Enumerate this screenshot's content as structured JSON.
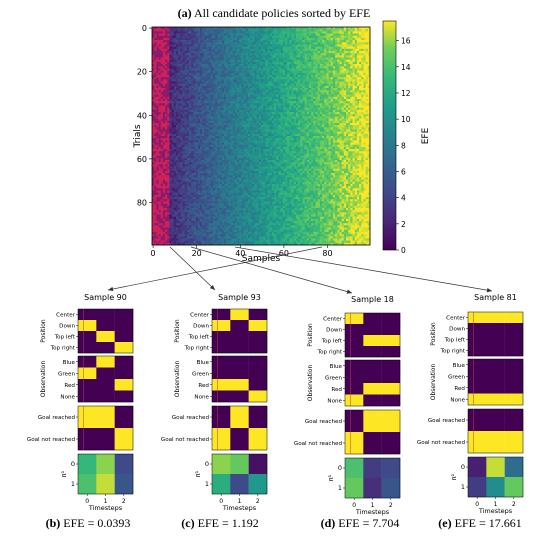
{
  "chart_data": {
    "main": {
      "type": "heatmap",
      "panel_letter": "(a)",
      "title": "All candidate policies sorted by EFE",
      "xlabel": "Samples",
      "ylabel": "Trials",
      "x_ticks": [
        "0",
        "20",
        "40",
        "60",
        "80"
      ],
      "y_ticks": [
        "0",
        "20",
        "40",
        "60",
        "80"
      ],
      "n_rows": 100,
      "n_cols": 100,
      "colorbar": {
        "label": "EFE",
        "ticks": [
          "0",
          "2",
          "4",
          "6",
          "8",
          "10",
          "12",
          "14",
          "16"
        ],
        "range": [
          0,
          17.5
        ]
      },
      "description_values": {
        "low_end_highlight_cols": 8,
        "max_value": 17.5
      }
    },
    "samples": [
      {
        "title": "Sample 90",
        "caption_letter": "(b)",
        "caption_text": "EFE = 0.0393",
        "position": [
          [
            0,
            0,
            0
          ],
          [
            1,
            0,
            0
          ],
          [
            0,
            1,
            0
          ],
          [
            0,
            0,
            1
          ]
        ],
        "observation": [
          [
            0,
            1,
            0
          ],
          [
            1,
            0,
            0
          ],
          [
            0,
            0,
            1
          ],
          [
            0,
            0,
            0
          ]
        ],
        "goal": [
          [
            1,
            1,
            0
          ],
          [
            0,
            0,
            1
          ]
        ],
        "pi": [
          [
            0.75,
            0.9,
            0.25
          ],
          [
            0.8,
            0.95,
            0.3
          ]
        ]
      },
      {
        "title": "Sample 93",
        "caption_letter": "(c)",
        "caption_text": "EFE = 1.192",
        "position": [
          [
            0,
            1,
            0
          ],
          [
            1,
            0,
            1
          ],
          [
            0,
            0,
            0
          ],
          [
            0,
            0,
            0
          ]
        ],
        "observation": [
          [
            0,
            0,
            0
          ],
          [
            0,
            0,
            0
          ],
          [
            1,
            1,
            0
          ],
          [
            0,
            0,
            1
          ]
        ],
        "goal": [
          [
            0,
            1,
            0
          ],
          [
            1,
            0,
            1
          ]
        ],
        "pi": [
          [
            0.9,
            0.85,
            0.05
          ],
          [
            0.7,
            0.25,
            0.6
          ]
        ]
      },
      {
        "title": "Sample 18",
        "caption_letter": "(d)",
        "caption_text": "EFE = 7.704",
        "position": [
          [
            1,
            0,
            0
          ],
          [
            0,
            0,
            0
          ],
          [
            0,
            1,
            1
          ],
          [
            0,
            0,
            0
          ]
        ],
        "observation": [
          [
            0,
            0,
            0
          ],
          [
            0,
            0,
            0
          ],
          [
            0,
            1,
            1
          ],
          [
            1,
            0,
            0
          ]
        ],
        "goal": [
          [
            0,
            1,
            1
          ],
          [
            1,
            0,
            0
          ]
        ],
        "pi": [
          [
            0.8,
            0.2,
            0.25
          ],
          [
            0.85,
            0.15,
            0.3
          ]
        ]
      },
      {
        "title": "Sample 81",
        "caption_letter": "(e)",
        "caption_text": "EFE = 17.661",
        "position": [
          [
            1,
            1,
            1
          ],
          [
            0,
            0,
            0
          ],
          [
            0,
            0,
            0
          ],
          [
            0,
            0,
            0
          ]
        ],
        "observation": [
          [
            0,
            0,
            0
          ],
          [
            0,
            0,
            0
          ],
          [
            0,
            0,
            0
          ],
          [
            1,
            1,
            1
          ]
        ],
        "goal": [
          [
            0,
            0,
            0
          ],
          [
            1,
            1,
            1
          ]
        ],
        "pi": [
          [
            0.1,
            0.95,
            0.4
          ],
          [
            0.2,
            0.55,
            0.85
          ]
        ]
      }
    ],
    "labels": {
      "position_rows": [
        "Center",
        "Down",
        "Top left",
        "Top right"
      ],
      "position_axis": "Position",
      "observation_rows": [
        "Blue",
        "Green",
        "Red",
        "None"
      ],
      "observation_axis": "Observation",
      "goal_rows": [
        "Goal reached",
        "Goal not reached"
      ],
      "pi_rows": [
        "0",
        "1"
      ],
      "pi_axis": "π¹",
      "timestep_ticks": [
        "0",
        "1",
        "2"
      ],
      "timestep_axis": "Timesteps"
    }
  }
}
